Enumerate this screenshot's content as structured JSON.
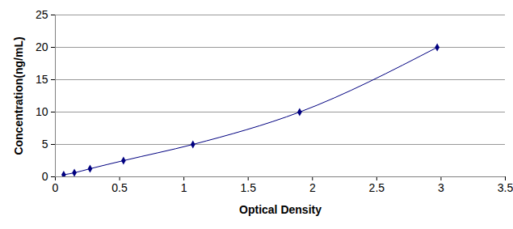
{
  "chart_data": {
    "type": "line",
    "x_label": "Optical Density",
    "y_label": "Concentration(ng/mL)",
    "x": [
      0.065,
      0.148,
      0.27,
      0.53,
      1.07,
      1.9,
      2.97
    ],
    "values": [
      0.312,
      0.625,
      1.25,
      2.5,
      5,
      10,
      20
    ],
    "color": "#000080",
    "marker": "diamond",
    "line_style": "solid",
    "xlim": [
      0,
      3.5
    ],
    "xticks": [
      0,
      0.5,
      1,
      1.5,
      2,
      2.5,
      3,
      3.5
    ],
    "ylim": [
      0,
      25
    ],
    "yticks": [
      0,
      5,
      10,
      15,
      20,
      25
    ],
    "grid": true
  }
}
